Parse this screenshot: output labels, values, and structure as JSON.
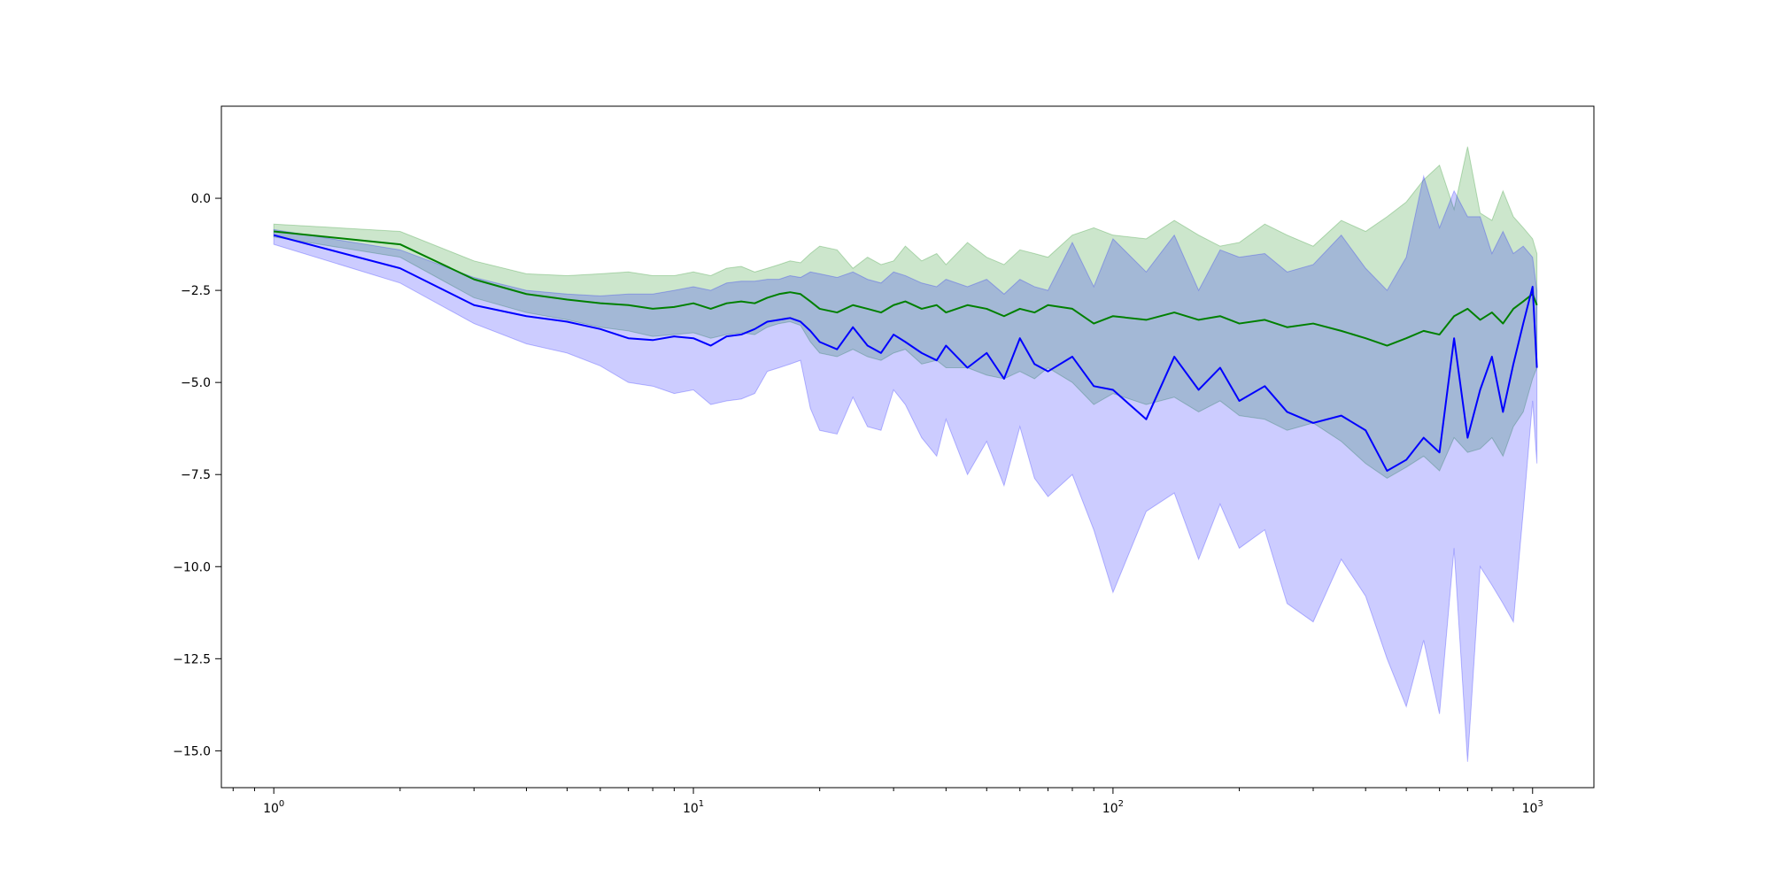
{
  "chart_data": {
    "type": "line",
    "title": "",
    "xlabel": "",
    "ylabel": "",
    "xscale": "log",
    "xlim": [
      0.75,
      1400
    ],
    "ylim": [
      -16.0,
      2.5
    ],
    "grid": false,
    "legend": "none",
    "x_ticks": [
      {
        "value": 1,
        "base": "10",
        "exp": "0"
      },
      {
        "value": 10,
        "base": "10",
        "exp": "1"
      },
      {
        "value": 100,
        "base": "10",
        "exp": "2"
      },
      {
        "value": 1000,
        "base": "10",
        "exp": "3"
      }
    ],
    "y_ticks": [
      {
        "value": 0,
        "label": "0.0"
      },
      {
        "value": -2.5,
        "label": "−2.5"
      },
      {
        "value": -5,
        "label": "−5.0"
      },
      {
        "value": -7.5,
        "label": "−7.5"
      },
      {
        "value": -10,
        "label": "−10.0"
      },
      {
        "value": -12.5,
        "label": "−12.5"
      },
      {
        "value": -15,
        "label": "−15.0"
      }
    ],
    "series": [
      {
        "color": "#008000",
        "band_color": "#008000",
        "band_opacity": 0.2,
        "x": [
          1,
          2,
          3,
          4,
          5,
          6,
          7,
          8,
          9,
          10,
          11,
          12,
          13,
          14,
          15,
          16,
          17,
          18,
          19,
          20,
          22,
          24,
          26,
          28,
          30,
          32,
          35,
          38,
          40,
          45,
          50,
          55,
          60,
          65,
          70,
          80,
          90,
          100,
          120,
          140,
          160,
          180,
          200,
          230,
          260,
          300,
          350,
          400,
          450,
          500,
          550,
          600,
          650,
          700,
          750,
          800,
          850,
          900,
          950,
          1000,
          1024
        ],
        "y": [
          -0.9,
          -1.25,
          -2.2,
          -2.6,
          -2.75,
          -2.85,
          -2.9,
          -3.0,
          -2.95,
          -2.85,
          -3.0,
          -2.85,
          -2.8,
          -2.85,
          -2.7,
          -2.6,
          -2.55,
          -2.6,
          -2.8,
          -3.0,
          -3.1,
          -2.9,
          -3.0,
          -3.1,
          -2.9,
          -2.8,
          -3.0,
          -2.9,
          -3.1,
          -2.9,
          -3.0,
          -3.2,
          -3.0,
          -3.1,
          -2.9,
          -3.0,
          -3.4,
          -3.2,
          -3.3,
          -3.1,
          -3.3,
          -3.2,
          -3.4,
          -3.3,
          -3.5,
          -3.4,
          -3.6,
          -3.8,
          -4.0,
          -3.8,
          -3.6,
          -3.7,
          -3.2,
          -3.0,
          -3.3,
          -3.1,
          -3.4,
          -3.0,
          -2.8,
          -2.6,
          -2.9
        ],
        "upper": [
          -0.7,
          -0.9,
          -1.7,
          -2.05,
          -2.1,
          -2.05,
          -2.0,
          -2.1,
          -2.1,
          -2.0,
          -2.1,
          -1.9,
          -1.85,
          -2.0,
          -1.9,
          -1.8,
          -1.7,
          -1.75,
          -1.5,
          -1.3,
          -1.4,
          -1.9,
          -1.6,
          -1.8,
          -1.7,
          -1.3,
          -1.7,
          -1.5,
          -1.8,
          -1.2,
          -1.6,
          -1.8,
          -1.4,
          -1.5,
          -1.6,
          -1.0,
          -0.8,
          -1.0,
          -1.1,
          -0.6,
          -1.0,
          -1.3,
          -1.2,
          -0.7,
          -1.0,
          -1.3,
          -0.6,
          -0.9,
          -0.5,
          -0.1,
          0.5,
          0.9,
          -0.3,
          1.4,
          -0.4,
          -0.6,
          0.2,
          -0.5,
          -0.8,
          -1.1,
          -1.5
        ],
        "lower": [
          -1.05,
          -1.6,
          -2.7,
          -3.1,
          -3.3,
          -3.5,
          -3.6,
          -3.75,
          -3.7,
          -3.65,
          -3.8,
          -3.7,
          -3.65,
          -3.7,
          -3.5,
          -3.4,
          -3.35,
          -3.45,
          -3.9,
          -4.2,
          -4.3,
          -4.1,
          -4.3,
          -4.4,
          -4.2,
          -4.1,
          -4.5,
          -4.4,
          -4.6,
          -4.6,
          -4.8,
          -4.9,
          -4.7,
          -4.9,
          -4.6,
          -5.0,
          -5.6,
          -5.3,
          -5.6,
          -5.4,
          -5.8,
          -5.5,
          -5.9,
          -6.0,
          -6.3,
          -6.1,
          -6.6,
          -7.2,
          -7.6,
          -7.3,
          -7.0,
          -7.4,
          -6.5,
          -6.9,
          -6.8,
          -6.5,
          -7.0,
          -6.2,
          -5.8,
          -4.9,
          -4.6
        ]
      },
      {
        "color": "#0000ff",
        "band_color": "#0000ff",
        "band_opacity": 0.2,
        "x": [
          1,
          2,
          3,
          4,
          5,
          6,
          7,
          8,
          9,
          10,
          11,
          12,
          13,
          14,
          15,
          16,
          17,
          18,
          19,
          20,
          22,
          24,
          26,
          28,
          30,
          32,
          35,
          38,
          40,
          45,
          50,
          55,
          60,
          65,
          70,
          80,
          90,
          100,
          120,
          140,
          160,
          180,
          200,
          230,
          260,
          300,
          350,
          400,
          450,
          500,
          550,
          600,
          650,
          700,
          750,
          800,
          850,
          900,
          950,
          1000,
          1024
        ],
        "y": [
          -1.0,
          -1.9,
          -2.9,
          -3.2,
          -3.35,
          -3.55,
          -3.8,
          -3.85,
          -3.75,
          -3.8,
          -4.0,
          -3.75,
          -3.7,
          -3.55,
          -3.35,
          -3.3,
          -3.25,
          -3.35,
          -3.6,
          -3.9,
          -4.1,
          -3.5,
          -4.0,
          -4.2,
          -3.7,
          -3.9,
          -4.2,
          -4.4,
          -4.0,
          -4.6,
          -4.2,
          -4.9,
          -3.8,
          -4.5,
          -4.7,
          -4.3,
          -5.1,
          -5.2,
          -6.0,
          -4.3,
          -5.2,
          -4.6,
          -5.5,
          -5.1,
          -5.8,
          -6.1,
          -5.9,
          -6.3,
          -7.4,
          -7.1,
          -6.5,
          -6.9,
          -3.8,
          -6.5,
          -5.2,
          -4.3,
          -5.8,
          -4.5,
          -3.4,
          -2.4,
          -4.6
        ],
        "upper": [
          -0.85,
          -1.4,
          -2.15,
          -2.5,
          -2.6,
          -2.65,
          -2.6,
          -2.6,
          -2.5,
          -2.4,
          -2.5,
          -2.3,
          -2.25,
          -2.25,
          -2.2,
          -2.2,
          -2.1,
          -2.15,
          -2.0,
          -2.05,
          -2.15,
          -2.0,
          -2.2,
          -2.3,
          -2.0,
          -2.1,
          -2.3,
          -2.4,
          -2.2,
          -2.4,
          -2.2,
          -2.6,
          -2.2,
          -2.4,
          -2.5,
          -1.2,
          -2.4,
          -1.1,
          -2.0,
          -1.0,
          -2.5,
          -1.4,
          -1.6,
          -1.5,
          -2.0,
          -1.8,
          -1.0,
          -1.9,
          -2.5,
          -1.6,
          0.6,
          -0.8,
          0.2,
          -0.5,
          -0.5,
          -1.5,
          -0.9,
          -1.5,
          -1.3,
          -1.6,
          -2.5
        ],
        "lower": [
          -1.25,
          -2.3,
          -3.4,
          -3.95,
          -4.2,
          -4.55,
          -5.0,
          -5.1,
          -5.3,
          -5.2,
          -5.6,
          -5.5,
          -5.45,
          -5.3,
          -4.7,
          -4.6,
          -4.5,
          -4.4,
          -5.7,
          -6.3,
          -6.4,
          -5.4,
          -6.2,
          -6.3,
          -5.2,
          -5.6,
          -6.5,
          -7.0,
          -6.0,
          -7.5,
          -6.6,
          -7.8,
          -6.2,
          -7.6,
          -8.1,
          -7.5,
          -9.0,
          -10.7,
          -8.5,
          -8.0,
          -9.8,
          -8.3,
          -9.5,
          -9.0,
          -11.0,
          -11.5,
          -9.8,
          -10.8,
          -12.5,
          -13.8,
          -12.0,
          -14.0,
          -9.5,
          -15.3,
          -10.0,
          -10.5,
          -11.0,
          -11.5,
          -8.5,
          -5.5,
          -7.2
        ]
      }
    ]
  }
}
